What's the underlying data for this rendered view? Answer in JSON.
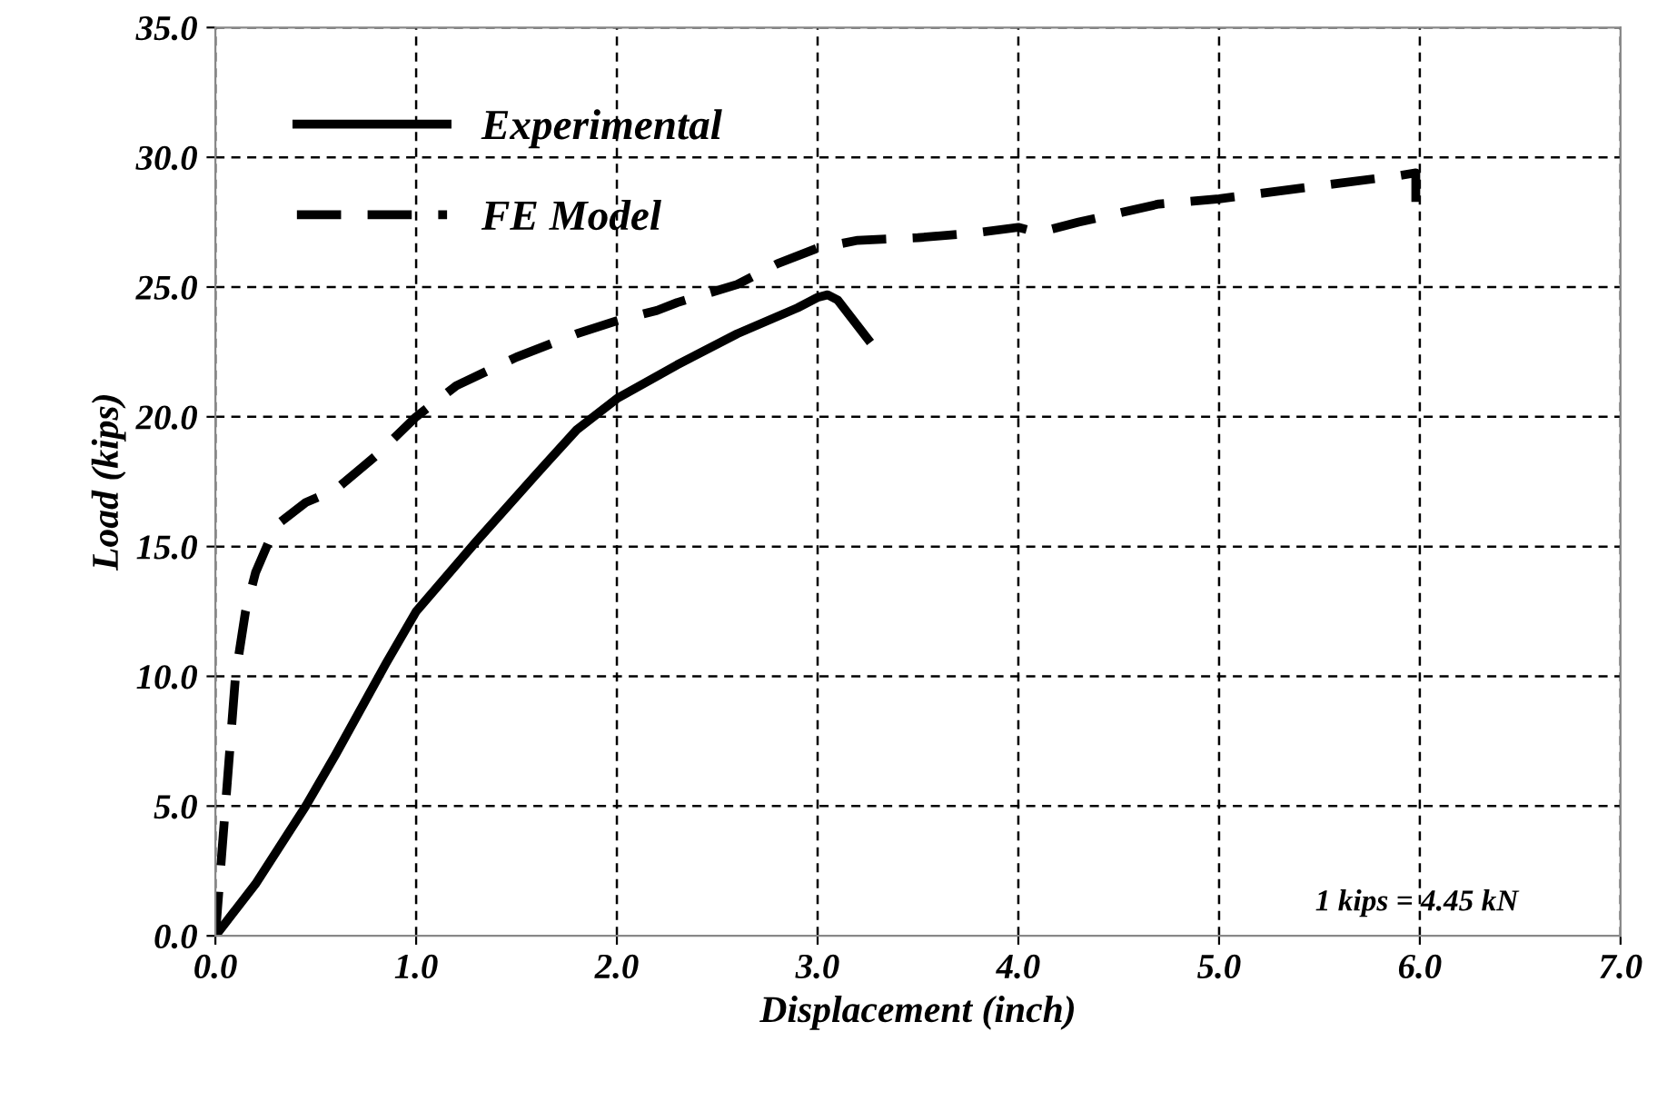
{
  "chart_data": {
    "type": "line",
    "xlabel": "Displacement (inch)",
    "ylabel": "Load (kips)",
    "xlim": [
      0,
      7
    ],
    "ylim": [
      0,
      35
    ],
    "xticks": [
      {
        "value": 0,
        "label": "0.0"
      },
      {
        "value": 1,
        "label": "1.0"
      },
      {
        "value": 2,
        "label": "2.0"
      },
      {
        "value": 3,
        "label": "3.0"
      },
      {
        "value": 4,
        "label": "4.0"
      },
      {
        "value": 5,
        "label": "5.0"
      },
      {
        "value": 6,
        "label": "6.0"
      },
      {
        "value": 7,
        "label": "7.0"
      }
    ],
    "yticks": [
      {
        "value": 0,
        "label": "0.0"
      },
      {
        "value": 5,
        "label": "5.0"
      },
      {
        "value": 10,
        "label": "10.0"
      },
      {
        "value": 15,
        "label": "15.0"
      },
      {
        "value": 20,
        "label": "20.0"
      },
      {
        "value": 25,
        "label": "25.0"
      },
      {
        "value": 30,
        "label": "30.0"
      },
      {
        "value": 35,
        "label": "35.0"
      }
    ],
    "grid": true,
    "legend": "top left",
    "marker": "none",
    "annotations": [
      "1 kips = 4.45 kN"
    ],
    "series": [
      {
        "name": "Experimental",
        "color": "#000000",
        "line_style": "solid",
        "x": [
          0,
          0.2,
          0.45,
          0.6,
          0.85,
          1.0,
          1.3,
          1.6,
          1.8,
          2.0,
          2.3,
          2.6,
          2.9,
          3.0,
          3.05,
          3.1,
          3.25
        ],
        "values": [
          0,
          2,
          5,
          7,
          10.5,
          12.5,
          15.2,
          17.8,
          19.5,
          20.7,
          22,
          23.2,
          24.2,
          24.6,
          24.7,
          24.5,
          23
        ]
      },
      {
        "name": "FE Model",
        "color": "#000000",
        "line_style": "dashed",
        "x": [
          0,
          0.05,
          0.1,
          0.15,
          0.2,
          0.3,
          0.45,
          0.6,
          0.8,
          1.0,
          1.2,
          1.5,
          1.8,
          2.0,
          2.2,
          2.3,
          2.6,
          2.8,
          3.0,
          3.2,
          3.5,
          3.8,
          4.0,
          4.1,
          4.3,
          4.7,
          5.0,
          5.5,
          5.9,
          5.98,
          5.98
        ],
        "values": [
          0,
          5,
          10,
          12.5,
          14,
          15.8,
          16.7,
          17.2,
          18.5,
          20,
          21.2,
          22.3,
          23.2,
          23.7,
          24.1,
          24.4,
          25.1,
          25.9,
          26.5,
          26.8,
          26.9,
          27.1,
          27.3,
          27.1,
          27.5,
          28.2,
          28.4,
          28.9,
          29.3,
          29.4,
          28
        ]
      }
    ]
  }
}
